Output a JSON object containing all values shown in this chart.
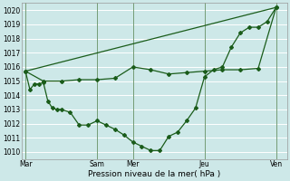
{
  "title": "",
  "xlabel": "Pression niveau de la mer( hPa )",
  "bg_color": "#cde8e8",
  "grid_color": "#ffffff",
  "line_color": "#1a5c1a",
  "marker_color": "#1a5c1a",
  "ylim": [
    1009.5,
    1020.5
  ],
  "yticks": [
    1010,
    1011,
    1012,
    1013,
    1014,
    1015,
    1016,
    1017,
    1018,
    1019,
    1020
  ],
  "day_labels": [
    "Mar",
    "",
    "Sam",
    "Mer",
    "",
    "Jeu",
    "",
    "Ven"
  ],
  "day_positions": [
    0,
    1,
    2,
    3,
    4,
    5,
    6,
    7
  ],
  "xtick_labels": [
    "Mar",
    "Sam",
    "Mer",
    "Jeu",
    "Ven"
  ],
  "xtick_positions": [
    0,
    2,
    3,
    5,
    7
  ],
  "series1_x": [
    0,
    0.125,
    0.25,
    0.375,
    0.5,
    0.625,
    0.75,
    0.875,
    1.0,
    1.25,
    1.5,
    1.75,
    2.0,
    2.25,
    2.5,
    2.75,
    3.0,
    3.25,
    3.5,
    3.75,
    4.0,
    4.25,
    4.5,
    4.75,
    5.0,
    5.25,
    5.5,
    5.75,
    6.0,
    6.25,
    6.5,
    6.75,
    7.0
  ],
  "series1_y": [
    1015.7,
    1014.4,
    1014.8,
    1014.8,
    1014.9,
    1013.6,
    1013.1,
    1013.0,
    1013.0,
    1012.8,
    1011.9,
    1011.9,
    1012.2,
    1011.9,
    1011.6,
    1011.2,
    1010.7,
    1010.4,
    1010.1,
    1010.1,
    1011.1,
    1011.4,
    1012.2,
    1013.1,
    1015.3,
    1015.8,
    1016.0,
    1017.4,
    1018.4,
    1018.8,
    1018.8,
    1019.2,
    1020.2
  ],
  "series2_x": [
    0,
    0.5,
    1.0,
    1.5,
    2.0,
    2.5,
    3.0,
    3.5,
    4.0,
    4.5,
    5.0,
    5.5,
    6.0,
    6.5,
    7.0
  ],
  "series2_y": [
    1015.7,
    1015.0,
    1015.0,
    1015.1,
    1015.1,
    1015.2,
    1016.0,
    1015.8,
    1015.5,
    1015.6,
    1015.7,
    1015.8,
    1015.8,
    1015.9,
    1020.2
  ],
  "series3_x": [
    0,
    7.0
  ],
  "series3_y": [
    1015.7,
    1020.2
  ],
  "vline_positions": [
    0,
    2,
    3,
    5,
    7
  ],
  "xmin": -0.1,
  "xmax": 7.3
}
